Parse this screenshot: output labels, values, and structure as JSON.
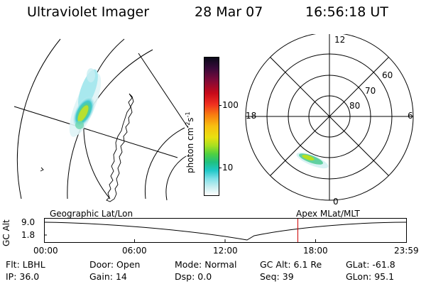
{
  "header": {
    "title": "Ultraviolet Imager",
    "date": "28 Mar 07",
    "time": "16:56:18 UT"
  },
  "colorbar": {
    "unit_label": "photon cm",
    "unit_exp1": "-2",
    "unit_mid": "s",
    "unit_exp2": "-1",
    "ticks": [
      "100",
      "10"
    ]
  },
  "polar_plot": {
    "mlt_labels": {
      "top": "12",
      "left": "18",
      "right": "6",
      "bottom": "0"
    },
    "lat_labels": [
      "60",
      "70",
      "80"
    ]
  },
  "timeline": {
    "left_label": "Geographic Lat/Lon",
    "right_label": "Apex MLat/MLT",
    "axis_title": "GC Alt",
    "y_ticks": [
      "9.0",
      "1.8"
    ],
    "x_ticks": [
      "00:00",
      "06:00",
      "12:00",
      "18:00",
      "23:59"
    ],
    "current_time_marker": "16:56:18",
    "marker_color": "#cc0000"
  },
  "info": {
    "row1": [
      {
        "key": "Flt:",
        "value": "LBHL"
      },
      {
        "key": "Door:",
        "value": "Open"
      },
      {
        "key": "Mode:",
        "value": "Normal"
      },
      {
        "key": "GC Alt:",
        "value": "6.1 Re"
      },
      {
        "key": "GLat:",
        "value": "-61.8"
      }
    ],
    "row2": [
      {
        "key": "IP:",
        "value": "36.0"
      },
      {
        "key": "Gain:",
        "value": "14"
      },
      {
        "key": "Dsp:",
        "value": "0.0"
      },
      {
        "key": "Seq:",
        "value": "39"
      },
      {
        "key": "GLon:",
        "value": "95.1"
      }
    ]
  }
}
